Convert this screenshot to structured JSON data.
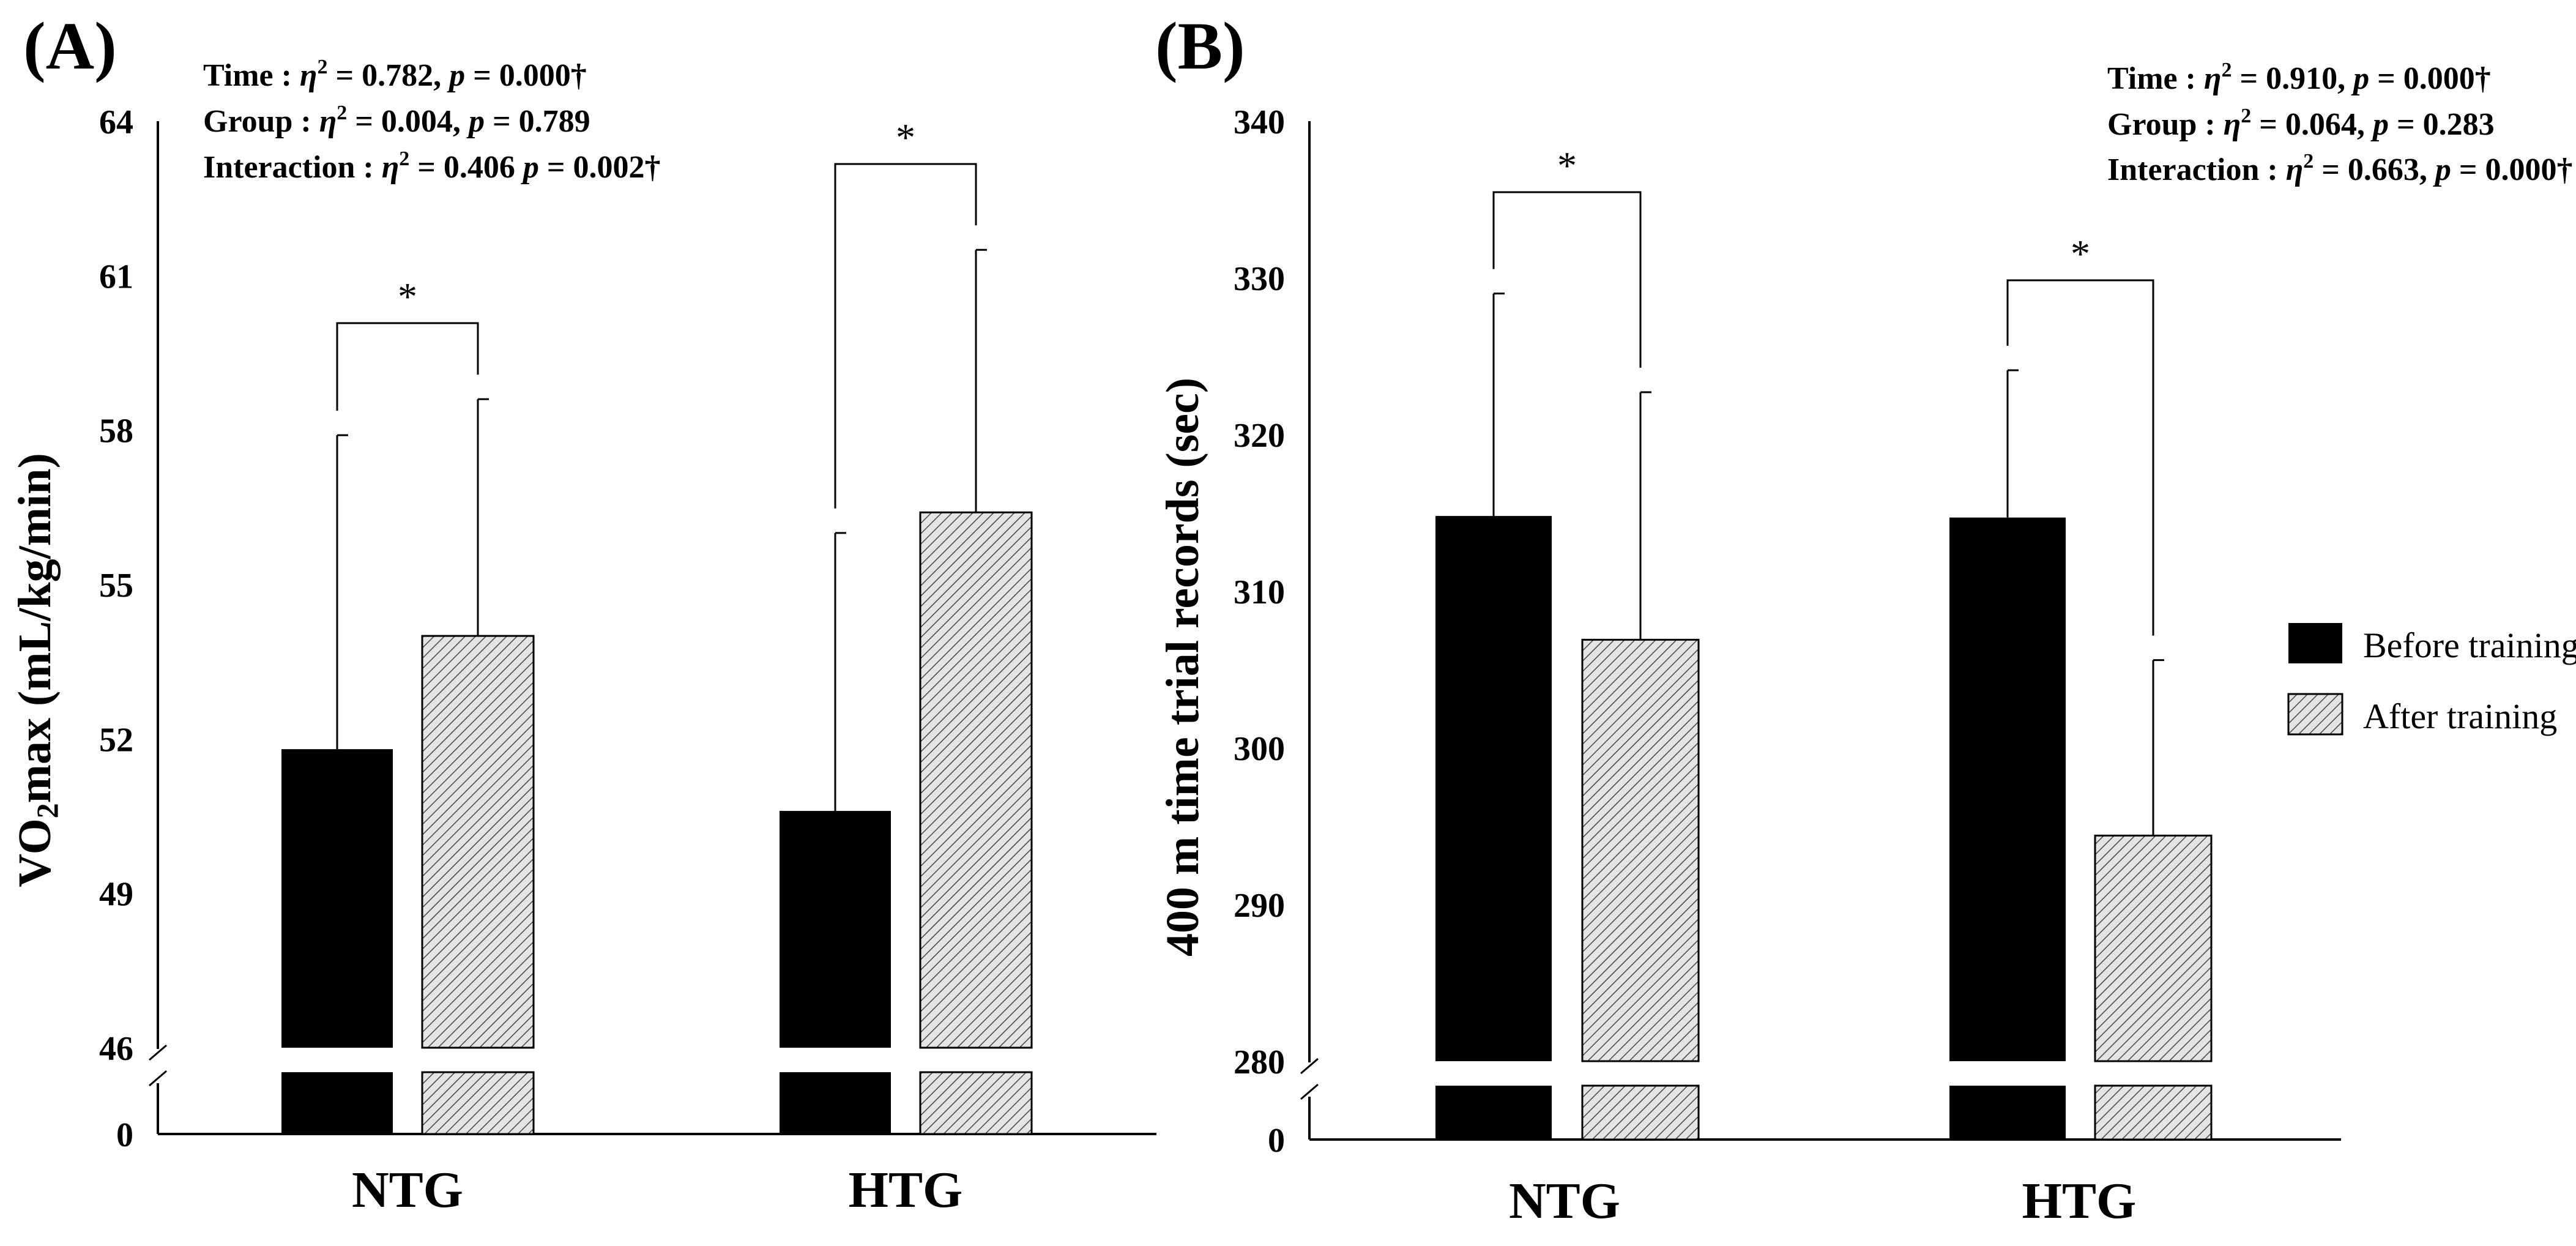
{
  "chart_data": [
    {
      "panel": "(A)",
      "type": "bar",
      "ylabel_main": "VO",
      "ylabel_sub": "2",
      "ylabel_rest": "max (mL/kg/min)",
      "categories": [
        "NTG",
        "HTG"
      ],
      "series": [
        {
          "name": "Before training",
          "values": [
            51.8,
            50.6
          ],
          "errors": [
            6.1,
            5.4
          ]
        },
        {
          "name": "After training",
          "values": [
            54.0,
            56.4
          ],
          "errors": [
            4.6,
            5.1
          ]
        }
      ],
      "ylim": [
        46,
        64
      ],
      "yticks": [
        "64",
        "61",
        "58",
        "55",
        "52",
        "49",
        "46"
      ],
      "ytick_values": [
        64,
        61,
        58,
        55,
        52,
        49,
        46
      ],
      "axis_break": {
        "lower_label": "0"
      },
      "significance": [
        "*",
        "*"
      ],
      "stats": [
        {
          "label": "Time : ",
          "eta": "η",
          "sup": "2",
          "eq": " = 0.782, ",
          "p": "p",
          "rest": " = 0.000†"
        },
        {
          "label": "Group : ",
          "eta": "η",
          "sup": "2",
          "eq": " = 0.004, ",
          "p": "p",
          "rest": " = 0.789"
        },
        {
          "label": "Interaction : ",
          "eta": "η",
          "sup": "2",
          "eq": " = 0.406 ",
          "p": "p",
          "rest": " = 0.002†"
        }
      ]
    },
    {
      "panel": "(B)",
      "type": "bar",
      "ylabel_main": "400 m time trial records (sec)",
      "categories": [
        "NTG",
        "HTG"
      ],
      "series": [
        {
          "name": "Before training",
          "values": [
            314.8,
            314.7
          ],
          "errors": [
            14.2,
            9.4
          ]
        },
        {
          "name": "After training",
          "values": [
            306.9,
            294.4
          ],
          "errors": [
            15.8,
            11.2
          ]
        }
      ],
      "ylim": [
        280,
        340
      ],
      "yticks": [
        "340",
        "330",
        "320",
        "310",
        "300",
        "290",
        "280"
      ],
      "ytick_values": [
        340,
        330,
        320,
        310,
        300,
        290,
        280
      ],
      "axis_break": {
        "lower_label": "0"
      },
      "significance": [
        "*",
        "*"
      ],
      "stats": [
        {
          "label": "Time : ",
          "eta": "η",
          "sup": "2",
          "eq": " = 0.910, ",
          "p": "p",
          "rest": " = 0.000†"
        },
        {
          "label": "Group : ",
          "eta": "η",
          "sup": "2",
          "eq": " = 0.064, ",
          "p": "p",
          "rest": " = 0.283"
        },
        {
          "label": "Interaction : ",
          "eta": "η",
          "sup": "2",
          "eq": " = 0.663, ",
          "p": "p",
          "rest": " = 0.000†"
        }
      ]
    }
  ],
  "legend": {
    "before": "Before training",
    "after": "After training"
  }
}
